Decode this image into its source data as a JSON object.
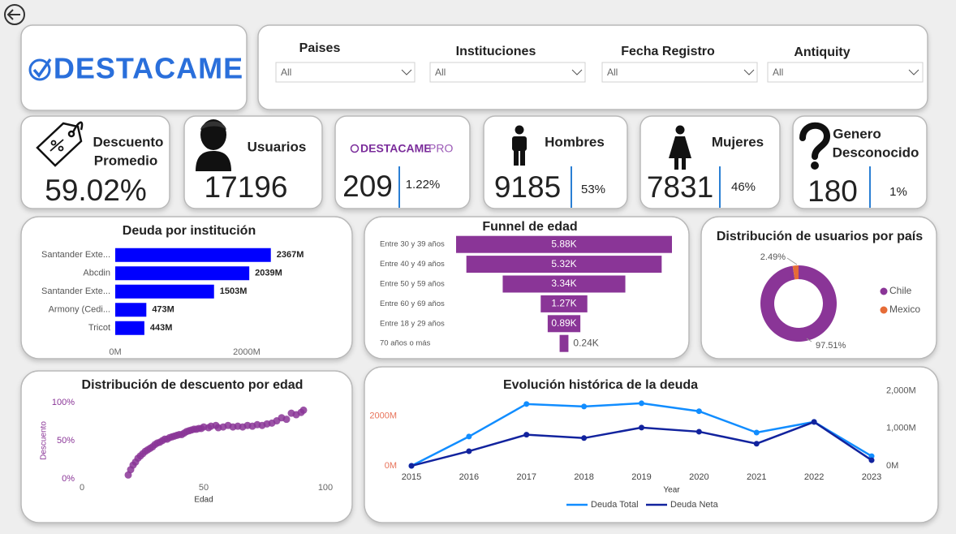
{
  "header": {
    "logo": "DESTACAME"
  },
  "filters": [
    {
      "label": "Paises",
      "value": "All"
    },
    {
      "label": "Instituciones",
      "value": "All"
    },
    {
      "label": "Fecha Registro",
      "value": "All"
    },
    {
      "label": "Antiquity",
      "value": "All"
    }
  ],
  "kpis": [
    {
      "title": [
        "Descuento",
        "Promedio"
      ],
      "value": "59.02%"
    },
    {
      "title": [
        "Usuarios"
      ],
      "value": "17196"
    },
    {
      "logo": "DESTACAME",
      "logo_suffix": "PRO",
      "value": "209",
      "share": "1.22%"
    },
    {
      "title": [
        "Hombres"
      ],
      "value": "9185",
      "share": "53%"
    },
    {
      "title": [
        "Mujeres"
      ],
      "value": "7831",
      "share": "46%"
    },
    {
      "title": [
        "Genero",
        "Desconocido"
      ],
      "value": "180",
      "share": "1%"
    }
  ],
  "chart_data": [
    {
      "type": "bar",
      "title": "Deuda por institución",
      "categories": [
        "Santander Exte...",
        "Abcdin",
        "Santander Exte...",
        "Armony (Cedi...",
        "Tricot"
      ],
      "values": [
        2367,
        2039,
        1503,
        473,
        443
      ],
      "value_labels": [
        "2367M",
        "2039M",
        "1503M",
        "473M",
        "443M"
      ],
      "color": "#0000ff",
      "xlim": [
        0,
        3000
      ],
      "xticks": [
        {
          "value": 0,
          "label": "0M"
        },
        {
          "value": 2000,
          "label": "2000M"
        }
      ]
    },
    {
      "type": "funnel",
      "title": "Funnel de edad",
      "categories": [
        "Entre 30 y 39 años",
        "Entre 40 y 49 años",
        "Entre 50 y 59 años",
        "Entre 60 y 69 años",
        "Entre 18 y 29 años",
        "70 años o más"
      ],
      "values": [
        5880,
        5320,
        3340,
        1270,
        890,
        240
      ],
      "value_labels": [
        "5.88K",
        "5.32K",
        "3.34K",
        "1.27K",
        "0.89K",
        "0.24K"
      ],
      "color": "#8a3597"
    },
    {
      "type": "pie",
      "title": "Distribución de usuarios por país",
      "categories": [
        "Chile",
        "Mexico"
      ],
      "values": [
        97.51,
        2.49
      ],
      "value_labels": [
        "97.51%",
        "2.49%"
      ],
      "colors": [
        "#8a3597",
        "#e66c37"
      ],
      "donut": true,
      "legend": "right"
    },
    {
      "type": "scatter",
      "title": "Distribución de descuento por edad",
      "xlabel": "Edad",
      "ylabel": "Descuento",
      "x": [
        19,
        20,
        21,
        22,
        23,
        24,
        25,
        26,
        27,
        28,
        29,
        30,
        31,
        32,
        33,
        34,
        35,
        36,
        37,
        38,
        39,
        40,
        41,
        42,
        43,
        44,
        45,
        46,
        47,
        48,
        49,
        50,
        52,
        53,
        55,
        56,
        58,
        60,
        62,
        64,
        66,
        68,
        70,
        72,
        74,
        76,
        78,
        80,
        82,
        84,
        86,
        88,
        90,
        91
      ],
      "values": [
        5,
        12,
        18,
        22,
        27,
        30,
        33,
        36,
        38,
        40,
        42,
        45,
        47,
        48,
        50,
        52,
        52,
        54,
        55,
        56,
        57,
        58,
        58,
        60,
        62,
        63,
        64,
        65,
        65,
        66,
        66,
        68,
        67,
        69,
        70,
        67,
        68,
        70,
        68,
        69,
        68,
        70,
        69,
        71,
        70,
        72,
        73,
        76,
        80,
        78,
        86,
        84,
        87,
        90
      ],
      "color": "#8a3597",
      "xlim": [
        0,
        100
      ],
      "xticks": [
        0,
        50,
        100
      ],
      "ylim": [
        0,
        100
      ],
      "yticks": [
        {
          "value": 0,
          "label": "0%"
        },
        {
          "value": 50,
          "label": "50%"
        },
        {
          "value": 100,
          "label": "100%"
        }
      ],
      "ytick_color": "#8a3597"
    },
    {
      "type": "line",
      "title": "Evolución histórica de la deuda",
      "xlabel": "Year",
      "categories": [
        "2015",
        "2016",
        "2017",
        "2018",
        "2019",
        "2020",
        "2021",
        "2022",
        "2023"
      ],
      "series": [
        {
          "name": "Deuda Total",
          "color": "#118dff",
          "values": [
            0,
            1180,
            2490,
            2390,
            2520,
            2200,
            1340,
            1770,
            390
          ]
        },
        {
          "name": "Deuda Neta",
          "color": "#12239e",
          "axis": "y2",
          "values": [
            0,
            390,
            830,
            740,
            1020,
            910,
            590,
            1170,
            150
          ]
        }
      ],
      "ylim": [
        0,
        3400
      ],
      "yticks": [
        {
          "value": 0,
          "label": "0M"
        },
        {
          "value": 2000,
          "label": "2000M"
        }
      ],
      "ytick_color": "#e8735a",
      "y2lim": [
        0,
        2250
      ],
      "y2ticks": [
        {
          "value": 0,
          "label": "0M"
        },
        {
          "value": 1000,
          "label": "1,000M"
        },
        {
          "value": 2000,
          "label": "2,000M"
        }
      ],
      "legend": "bottom",
      "markers": true
    }
  ]
}
